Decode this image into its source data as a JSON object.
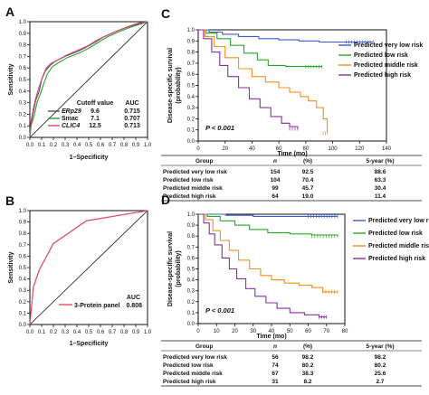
{
  "chart_data": [
    {
      "panel": "A",
      "type": "line",
      "xlabel": "1–Specificity",
      "ylabel": "Sensitivity",
      "xlim": [
        0,
        1
      ],
      "ylim": [
        0,
        1
      ],
      "xticks": [
        "0.0",
        "0.1",
        "0.2",
        "0.3",
        "0.4",
        "0.5",
        "0.6",
        "0.7",
        "0.8",
        "0.9",
        "1.0"
      ],
      "yticks": [
        "0.0",
        "0.1",
        "0.2",
        "0.3",
        "0.4",
        "0.5",
        "0.6",
        "0.7",
        "0.8",
        "0.9",
        "1.0"
      ],
      "legend_headers": [
        "Cutoff value",
        "AUC"
      ],
      "series": [
        {
          "name": "ERp29",
          "cutoff": "9.6",
          "auc": "0.715",
          "color": "#555555",
          "dash": "solid",
          "points": [
            [
              0,
              0
            ],
            [
              0.01,
              0.12
            ],
            [
              0.03,
              0.22
            ],
            [
              0.05,
              0.32
            ],
            [
              0.08,
              0.4
            ],
            [
              0.1,
              0.5
            ],
            [
              0.13,
              0.57
            ],
            [
              0.17,
              0.62
            ],
            [
              0.22,
              0.66
            ],
            [
              0.3,
              0.7
            ],
            [
              0.4,
              0.74
            ],
            [
              0.48,
              0.78
            ],
            [
              0.55,
              0.82
            ],
            [
              0.63,
              0.87
            ],
            [
              0.72,
              0.91
            ],
            [
              0.82,
              0.95
            ],
            [
              0.92,
              0.98
            ],
            [
              1,
              1
            ]
          ]
        },
        {
          "name": "Smac",
          "cutoff": "7.1",
          "auc": "0.707",
          "color": "#2aa02a",
          "dash": "solid",
          "points": [
            [
              0,
              0
            ],
            [
              0.01,
              0.1
            ],
            [
              0.04,
              0.2
            ],
            [
              0.06,
              0.3
            ],
            [
              0.09,
              0.38
            ],
            [
              0.12,
              0.47
            ],
            [
              0.15,
              0.55
            ],
            [
              0.19,
              0.61
            ],
            [
              0.25,
              0.65
            ],
            [
              0.32,
              0.69
            ],
            [
              0.42,
              0.73
            ],
            [
              0.5,
              0.77
            ],
            [
              0.58,
              0.82
            ],
            [
              0.66,
              0.87
            ],
            [
              0.75,
              0.91
            ],
            [
              0.85,
              0.95
            ],
            [
              0.94,
              0.98
            ],
            [
              1,
              1
            ]
          ]
        },
        {
          "name": "CLIC4",
          "cutoff": "12.5",
          "auc": "0.713",
          "color": "#d84080",
          "dash": "solid",
          "points": [
            [
              0,
              0
            ],
            [
              0.01,
              0.14
            ],
            [
              0.03,
              0.25
            ],
            [
              0.05,
              0.34
            ],
            [
              0.08,
              0.44
            ],
            [
              0.11,
              0.53
            ],
            [
              0.14,
              0.6
            ],
            [
              0.18,
              0.64
            ],
            [
              0.24,
              0.67
            ],
            [
              0.31,
              0.71
            ],
            [
              0.4,
              0.75
            ],
            [
              0.49,
              0.79
            ],
            [
              0.57,
              0.84
            ],
            [
              0.65,
              0.88
            ],
            [
              0.74,
              0.92
            ],
            [
              0.84,
              0.96
            ],
            [
              0.93,
              0.99
            ],
            [
              1,
              1
            ]
          ]
        }
      ]
    },
    {
      "panel": "B",
      "type": "line",
      "xlabel": "1–Specificity",
      "ylabel": "Sensitivity",
      "xlim": [
        0,
        1
      ],
      "ylim": [
        0,
        1
      ],
      "xticks": [
        "0.0",
        "0.1",
        "0.2",
        "0.3",
        "0.4",
        "0.5",
        "0.6",
        "0.7",
        "0.8",
        "0.9",
        "1.0"
      ],
      "yticks": [
        "0.0",
        "0.1",
        "0.2",
        "0.3",
        "0.4",
        "0.5",
        "0.6",
        "0.7",
        "0.8",
        "0.9",
        "1.0"
      ],
      "legend_headers": [
        "AUC"
      ],
      "series": [
        {
          "name": "3-Protein panel",
          "auc": "0.808",
          "color": "#e0506a",
          "points": [
            [
              0,
              0
            ],
            [
              0.03,
              0.33
            ],
            [
              0.08,
              0.48
            ],
            [
              0.2,
              0.71
            ],
            [
              0.48,
              0.91
            ],
            [
              1,
              1
            ]
          ]
        }
      ]
    },
    {
      "panel": "C",
      "type": "line",
      "xlabel": "Time (mo)",
      "ylabel": "Disease-specific survival (probability)",
      "xlim": [
        0,
        140
      ],
      "ylim": [
        0,
        1
      ],
      "xticks": [
        "0",
        "20",
        "40",
        "60",
        "80",
        "100",
        "120",
        "140"
      ],
      "yticks": [
        "0.0",
        "0.1",
        "0.2",
        "0.3",
        "0.4",
        "0.5",
        "0.6",
        "0.7",
        "0.8",
        "0.9",
        "1.0"
      ],
      "pvalue": "P < 0.001",
      "series": [
        {
          "name": "Predicted very low risk",
          "color": "#3d5bd0",
          "points": [
            [
              0,
              1
            ],
            [
              8,
              0.98
            ],
            [
              18,
              0.96
            ],
            [
              30,
              0.94
            ],
            [
              45,
              0.92
            ],
            [
              60,
              0.91
            ],
            [
              75,
              0.9
            ],
            [
              90,
              0.89
            ],
            [
              110,
              0.89
            ],
            [
              130,
              0.89
            ]
          ]
        },
        {
          "name": "Predicted low risk",
          "color": "#28a828",
          "points": [
            [
              0,
              1
            ],
            [
              6,
              0.97
            ],
            [
              14,
              0.92
            ],
            [
              24,
              0.86
            ],
            [
              34,
              0.79
            ],
            [
              44,
              0.73
            ],
            [
              52,
              0.68
            ],
            [
              65,
              0.67
            ],
            [
              80,
              0.67
            ],
            [
              92,
              0.67
            ]
          ]
        },
        {
          "name": "Predicted middle risk",
          "color": "#f09020",
          "points": [
            [
              0,
              1
            ],
            [
              5,
              0.94
            ],
            [
              12,
              0.85
            ],
            [
              20,
              0.75
            ],
            [
              30,
              0.65
            ],
            [
              40,
              0.58
            ],
            [
              50,
              0.53
            ],
            [
              60,
              0.48
            ],
            [
              68,
              0.44
            ],
            [
              76,
              0.4
            ],
            [
              82,
              0.36
            ],
            [
              88,
              0.3
            ],
            [
              93,
              0.2
            ],
            [
              96,
              0.07
            ]
          ]
        },
        {
          "name": "Predicted high risk",
          "color": "#8a2fa0",
          "points": [
            [
              0,
              1
            ],
            [
              4,
              0.92
            ],
            [
              10,
              0.8
            ],
            [
              16,
              0.68
            ],
            [
              22,
              0.58
            ],
            [
              30,
              0.48
            ],
            [
              38,
              0.38
            ],
            [
              46,
              0.3
            ],
            [
              54,
              0.22
            ],
            [
              62,
              0.16
            ],
            [
              68,
              0.13
            ],
            [
              74,
              0.11
            ]
          ]
        }
      ],
      "table": {
        "headers": [
          "Group",
          "n",
          "(%)",
          "5-year (%)"
        ],
        "rows": [
          [
            "Predicted very low risk",
            "154",
            "92.5",
            "88.6"
          ],
          [
            "Predicted low risk",
            "104",
            "70.4",
            "63.3"
          ],
          [
            "Predicted middle risk",
            "99",
            "45.7",
            "30.4"
          ],
          [
            "Predicted high risk",
            "64",
            "19.0",
            "11.4"
          ]
        ]
      }
    },
    {
      "panel": "D",
      "type": "line",
      "xlabel": "Time (mo)",
      "ylabel": "Disease-specific survival (probability)",
      "xlim": [
        0,
        80
      ],
      "ylim": [
        0,
        1
      ],
      "xticks": [
        "0",
        "10",
        "20",
        "30",
        "40",
        "50",
        "60",
        "70",
        "80"
      ],
      "yticks": [
        "0.0",
        "0.1",
        "0.2",
        "0.3",
        "0.4",
        "0.5",
        "0.6",
        "0.7",
        "0.8",
        "0.9",
        "1.0"
      ],
      "pvalue": "P < 0.001",
      "series": [
        {
          "name": "Predicted very low risk",
          "color": "#3d5bd0",
          "points": [
            [
              0,
              1
            ],
            [
              15,
              0.99
            ],
            [
              30,
              0.98
            ],
            [
              45,
              0.98
            ],
            [
              60,
              0.98
            ],
            [
              76,
              0.98
            ]
          ]
        },
        {
          "name": "Predicted low risk",
          "color": "#28a828",
          "points": [
            [
              0,
              1
            ],
            [
              5,
              0.98
            ],
            [
              12,
              0.94
            ],
            [
              20,
              0.9
            ],
            [
              28,
              0.86
            ],
            [
              38,
              0.83
            ],
            [
              50,
              0.82
            ],
            [
              62,
              0.81
            ],
            [
              76,
              0.8
            ]
          ]
        },
        {
          "name": "Predicted middle risk",
          "color": "#f09020",
          "points": [
            [
              0,
              1
            ],
            [
              4,
              0.95
            ],
            [
              8,
              0.85
            ],
            [
              12,
              0.76
            ],
            [
              17,
              0.67
            ],
            [
              22,
              0.58
            ],
            [
              28,
              0.5
            ],
            [
              34,
              0.44
            ],
            [
              40,
              0.4
            ],
            [
              47,
              0.37
            ],
            [
              55,
              0.35
            ],
            [
              62,
              0.33
            ],
            [
              68,
              0.29
            ],
            [
              76,
              0.29
            ]
          ]
        },
        {
          "name": "Predicted high risk",
          "color": "#8a2fa0",
          "points": [
            [
              0,
              1
            ],
            [
              3,
              0.92
            ],
            [
              6,
              0.82
            ],
            [
              9,
              0.72
            ],
            [
              13,
              0.6
            ],
            [
              17,
              0.5
            ],
            [
              21,
              0.41
            ],
            [
              26,
              0.32
            ],
            [
              31,
              0.25
            ],
            [
              37,
              0.19
            ],
            [
              43,
              0.14
            ],
            [
              50,
              0.1
            ],
            [
              58,
              0.08
            ],
            [
              66,
              0.06
            ],
            [
              70,
              0.06
            ]
          ]
        }
      ],
      "table": {
        "headers": [
          "Group",
          "n",
          "(%)",
          "5-year (%)"
        ],
        "rows": [
          [
            "Predicted very low risk",
            "56",
            "98.2",
            "98.2"
          ],
          [
            "Predicted low risk",
            "74",
            "80.2",
            "80.2"
          ],
          [
            "Predicted middle risk",
            "67",
            "38.3",
            "25.6"
          ],
          [
            "Predicted high risk",
            "31",
            "8.2",
            "2.7"
          ]
        ]
      }
    }
  ]
}
